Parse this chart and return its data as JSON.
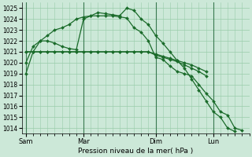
{
  "xlabel": "Pression niveau de la mer( hPa )",
  "background_color": "#cce8d8",
  "grid_color": "#99ccaa",
  "line_color": "#1a6b2a",
  "yticks": [
    1014,
    1015,
    1016,
    1017,
    1018,
    1019,
    1020,
    1021,
    1022,
    1023,
    1024,
    1025
  ],
  "ylim": [
    1013.5,
    1025.5
  ],
  "xtick_labels": [
    "Sam",
    "Mar",
    "Dim",
    "Lun"
  ],
  "xtick_positions": [
    0,
    8,
    18,
    26
  ],
  "xlim": [
    -0.5,
    31
  ],
  "vlines": [
    0,
    8,
    18,
    26
  ],
  "lines": [
    [
      1020.0,
      1021.5,
      1022.0,
      1022.0,
      1021.8,
      1021.5,
      1021.3,
      1021.2,
      1024.0,
      1024.3,
      1024.6,
      1024.5,
      1024.4,
      1024.3,
      1025.0,
      1024.8,
      1024.0,
      1023.5,
      1022.5,
      1021.8,
      1021.0,
      1020.2,
      1019.5,
      1018.5,
      1017.5,
      1016.5,
      1015.5,
      1015.0,
      1014.0,
      1013.7
    ],
    [
      1021.0,
      1021.0,
      1021.0,
      1021.0,
      1021.0,
      1021.0,
      1021.0,
      1021.0,
      1021.0,
      1021.0,
      1021.0,
      1021.0,
      1021.0,
      1021.0,
      1021.0,
      1021.0,
      1021.0,
      1021.0,
      1020.8,
      1020.6,
      1020.4,
      1020.2,
      1020.0,
      1019.8,
      1019.5,
      1019.2
    ],
    [
      1021.0,
      1021.0,
      1021.0,
      1021.0,
      1021.0,
      1021.0,
      1021.0,
      1021.0,
      1021.0,
      1021.0,
      1021.0,
      1021.0,
      1021.0,
      1021.0,
      1021.0,
      1021.0,
      1021.0,
      1021.0,
      1020.7,
      1020.5,
      1020.3,
      1020.1,
      1019.8,
      1019.5,
      1019.2,
      1018.8
    ],
    [
      1019.0,
      1021.0,
      1022.0,
      1022.5,
      1023.0,
      1023.2,
      1023.5,
      1024.0,
      1024.2,
      1024.3,
      1024.3,
      1024.3,
      1024.3,
      1024.2,
      1024.1,
      1023.2,
      1022.8,
      1022.0,
      1020.5,
      1020.3,
      1019.7,
      1019.2,
      1019.0,
      1018.8,
      1018.0,
      1017.2,
      1016.5,
      1015.5,
      1015.2,
      1014.0,
      1013.8
    ]
  ],
  "figsize": [
    3.2,
    2.0
  ],
  "dpi": 100
}
